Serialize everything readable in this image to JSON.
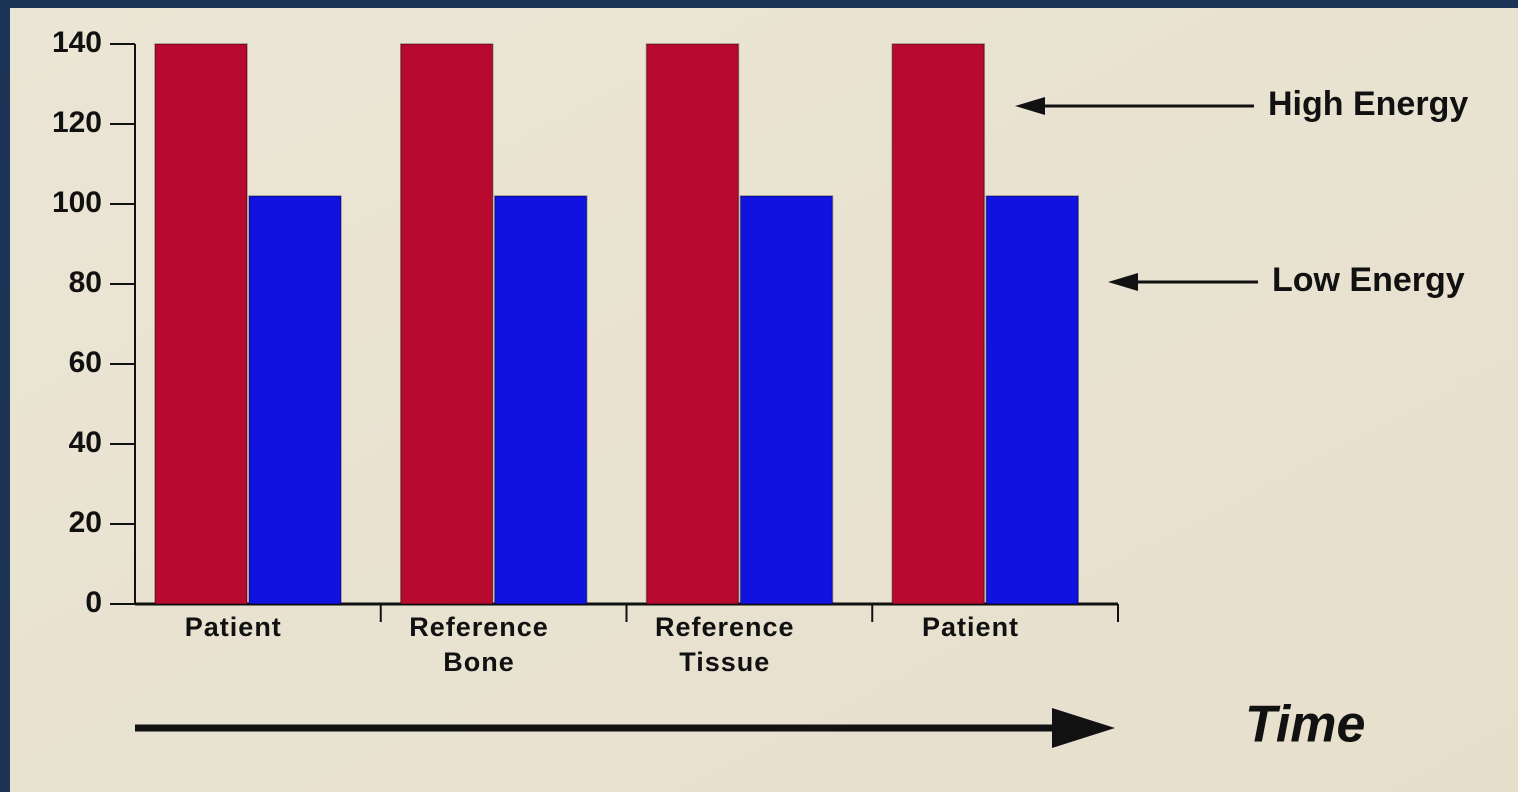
{
  "chart_data": {
    "type": "bar",
    "categories": [
      "Patient",
      "Reference Bone",
      "Reference Tissue",
      "Patient"
    ],
    "series": [
      {
        "name": "High Energy",
        "color": "#b8092f",
        "values": [
          140,
          140,
          140,
          140
        ]
      },
      {
        "name": "Low Energy",
        "color": "#1212e0",
        "values": [
          102,
          102,
          102,
          102
        ]
      }
    ],
    "ylim": [
      0,
      140
    ],
    "yticks": [
      0,
      20,
      40,
      60,
      80,
      100,
      120,
      140
    ],
    "xlabel": "Time"
  }
}
